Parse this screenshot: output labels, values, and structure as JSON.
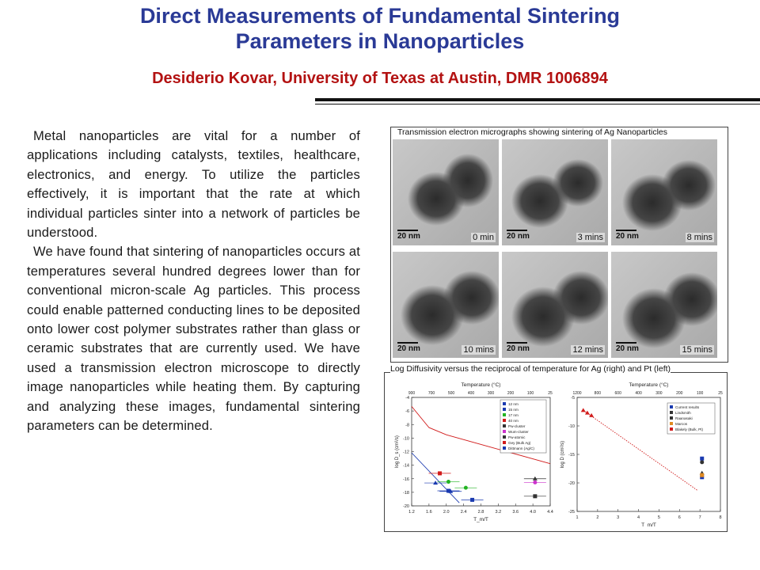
{
  "slide": {
    "title_line1": "Direct Measurements of Fundamental Sintering",
    "title_line2": "Parameters in Nanoparticles",
    "author_line": "Desiderio Kovar, University of Texas at Austin,  DMR 1006894",
    "colors": {
      "title": "#2a3a96",
      "author": "#b31212"
    }
  },
  "body": {
    "paragraph1": "Metal nanoparticles are vital for a number of applications including catalysts, textiles, healthcare, electronics, and energy. To utilize the particles effectively, it is important that the rate at which individual particles sinter into a network of particles be understood.",
    "paragraph2": "We have found that sintering of nanoparticles occurs at temperatures several hundred degrees lower than for conventional micron-scale Ag particles. This process could enable patterned conducting lines to be deposited onto lower cost polymer substrates rather than glass or ceramic substrates that are currently used. We have used a transmission electron microscope to directly image nanoparticles while heating them. By capturing and analyzing these images, fundamental sintering parameters can be determined."
  },
  "micrographs": {
    "caption": "Transmission electron micrographs showing sintering of Ag Nanoparticles",
    "scale_label": "20 nm",
    "frames": [
      {
        "time": "0 min"
      },
      {
        "time": "3 mins"
      },
      {
        "time": "8 mins"
      },
      {
        "time": "10 mins"
      },
      {
        "time": "12 mins"
      },
      {
        "time": "15 mins"
      }
    ]
  },
  "plots": {
    "caption": "Log Diffusivity versus the reciprocal of temperature for Ag (right) and Pt (left)"
  },
  "chart_data": [
    {
      "type": "scatter",
      "top_axis_label": "Temperature (°C)",
      "top_ticks": [
        "900",
        "700",
        "500",
        "400",
        "300",
        "200",
        "100",
        "25"
      ],
      "xlabel": "T_m/T",
      "ylabel": "log D_s (cm²/s)",
      "x_ticks": [
        "1.2",
        "1.6",
        "2.0",
        "2.4",
        "2.8",
        "3.2",
        "3.6",
        "4.0",
        "4.4"
      ],
      "y_ticks": [
        "-4",
        "-6",
        "-8",
        "-10",
        "-12",
        "-14",
        "-16",
        "-18",
        "-20"
      ],
      "xlim": [
        1.2,
        4.4
      ],
      "ylim": [
        -21,
        -3
      ],
      "legend": [
        "12 nm",
        "15 nm",
        "17 nm",
        "40 nm",
        "Pw-cluster",
        "Wum-cluster",
        "Pw-atomic",
        "Gey (Bulk Ag)",
        "Dittmann (Ag/C)"
      ],
      "series": [
        {
          "name": "12 nm",
          "color": "#1a3ab0",
          "points": [
            [
              2.05,
              -18.5
            ],
            [
              2.6,
              -20.0
            ]
          ]
        },
        {
          "name": "15 nm",
          "color": "#1a3ab0",
          "points": [
            [
              1.75,
              -17.2
            ],
            [
              2.1,
              -18.6
            ]
          ]
        },
        {
          "name": "17 nm",
          "color": "#22b322",
          "points": [
            [
              2.05,
              -17.0
            ],
            [
              2.45,
              -18.0
            ]
          ]
        },
        {
          "name": "40 nm",
          "color": "#d11b1b",
          "points": [
            [
              1.85,
              -15.6
            ]
          ]
        },
        {
          "name": "Pw-cluster",
          "color": "#333333",
          "points": [
            [
              4.05,
              -16.5
            ]
          ]
        },
        {
          "name": "Wum-cluster",
          "color": "#cc33cc",
          "points": [
            [
              4.05,
              -17.1
            ]
          ]
        },
        {
          "name": "Pw-atomic",
          "color": "#333333",
          "points": [
            [
              4.05,
              -19.4
            ]
          ]
        }
      ],
      "lines": [
        {
          "name": "Gey (Bulk Ag)",
          "color": "#d11b1b",
          "points": [
            [
              1.2,
              -4.5
            ],
            [
              1.6,
              -8.0
            ],
            [
              2.0,
              -9.2
            ],
            [
              3.0,
              -11.2
            ],
            [
              4.4,
              -14.0
            ]
          ]
        },
        {
          "name": "Dittmann (Ag/C)",
          "color": "#1a3ab0",
          "points": [
            [
              1.2,
              -12.2
            ],
            [
              2.3,
              -20.5
            ]
          ]
        }
      ]
    },
    {
      "type": "scatter",
      "top_axis_label": "Temperature (°C)",
      "top_ticks": [
        "1200",
        "800",
        "600",
        "400",
        "300",
        "200",
        "100",
        "25"
      ],
      "xlabel": "T_m/T",
      "ylabel": "log D (cm²/s)",
      "x_ticks": [
        "1",
        "2",
        "3",
        "4",
        "5",
        "6",
        "7",
        "8"
      ],
      "y_ticks": [
        "-5",
        "-10",
        "-15",
        "-20",
        "-25"
      ],
      "xlim": [
        1,
        8
      ],
      "ylim": [
        -26,
        -4
      ],
      "legend": [
        "Current results",
        "Lindsmith",
        "Raanasaki",
        "Marcos",
        "Blakely (Bulk, Pt)"
      ],
      "series": [
        {
          "name": "Current results",
          "color": "#1a3ab0",
          "points": [
            [
              7.1,
              -15.8
            ],
            [
              7.1,
              -19.4
            ]
          ]
        },
        {
          "name": "Lindsmith",
          "color": "#333333",
          "points": [
            [
              7.1,
              -18.6
            ]
          ]
        },
        {
          "name": "Raanasaki",
          "color": "#333333",
          "points": [
            [
              7.1,
              -16.5
            ]
          ]
        },
        {
          "name": "Marcos",
          "color": "#e08a20",
          "points": [
            [
              7.1,
              -19.0
            ]
          ]
        },
        {
          "name": "Blakely (Bulk, Pt)",
          "color": "#d11b1b",
          "points": [
            [
              1.3,
              -6.5
            ],
            [
              1.5,
              -7.0
            ],
            [
              1.7,
              -7.5
            ]
          ]
        }
      ],
      "lines": [
        {
          "name": "Blakely (Bulk, Pt)",
          "color": "#d11b1b",
          "points": [
            [
              1.3,
              -6.5
            ],
            [
              6.9,
              -22.0
            ]
          ]
        }
      ]
    }
  ]
}
